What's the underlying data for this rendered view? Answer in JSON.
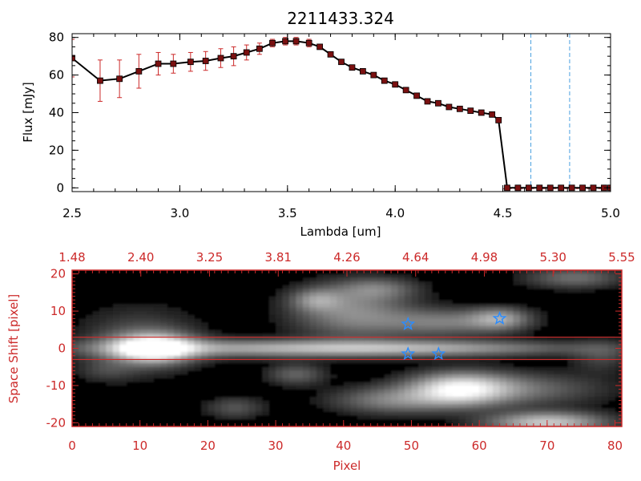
{
  "title": "2211433.324",
  "chart_data": [
    {
      "type": "line",
      "title": "2211433.324",
      "xlabel": "Lambda [um]",
      "ylabel": "Flux [mJy]",
      "xlim": [
        2.5,
        5.0
      ],
      "ylim": [
        -2,
        82
      ],
      "xticks": [
        "2.5",
        "3.0",
        "3.5",
        "4.0",
        "4.5",
        "5.0"
      ],
      "yticks": [
        "0",
        "20",
        "40",
        "60",
        "80"
      ],
      "reference_lines_x": [
        4.63,
        4.81
      ],
      "series": [
        {
          "x": [
            2.5,
            2.63,
            2.72,
            2.81,
            2.9,
            2.97,
            3.05,
            3.12,
            3.19,
            3.25,
            3.31,
            3.37,
            3.43,
            3.49,
            3.54,
            3.6,
            3.65,
            3.7,
            3.75,
            3.8,
            3.85,
            3.9,
            3.95,
            4.0,
            4.05,
            4.1,
            4.15,
            4.2,
            4.25,
            4.3,
            4.35,
            4.4,
            4.45,
            4.48,
            4.52,
            4.57,
            4.62,
            4.67,
            4.72,
            4.77,
            4.82,
            4.87,
            4.92,
            4.97,
            5.0
          ],
          "y": [
            69,
            57,
            58,
            62,
            66,
            66,
            67,
            67.5,
            69,
            70,
            72,
            74,
            77,
            78,
            78,
            77,
            75,
            71,
            67,
            64,
            62,
            60,
            57,
            55,
            52,
            49,
            46,
            45,
            43,
            42,
            41,
            40,
            39,
            36,
            0,
            0,
            0,
            0,
            0,
            0,
            0,
            0,
            0,
            0,
            0
          ],
          "yerr": [
            10,
            11,
            10,
            9,
            6,
            5,
            5,
            5,
            5,
            5,
            4,
            3,
            2,
            2,
            2,
            2,
            1,
            1,
            1,
            1,
            1,
            1,
            1,
            1,
            1,
            1,
            1,
            1,
            1,
            1,
            1,
            1,
            1,
            1,
            0,
            0,
            0,
            0,
            0,
            0,
            0,
            0,
            0,
            0,
            0
          ]
        }
      ]
    },
    {
      "type": "heatmap",
      "xlabel": "Pixel",
      "ylabel": "Space Shift [pixel]",
      "xlim": [
        0,
        81
      ],
      "ylim": [
        -21,
        21
      ],
      "xticks": [
        "0",
        "10",
        "20",
        "30",
        "40",
        "50",
        "60",
        "70",
        "80"
      ],
      "yticks": [
        "-20",
        "-10",
        "0",
        "10",
        "20"
      ],
      "top_ticks": [
        "1.48",
        "2.40",
        "3.25",
        "3.81",
        "4.26",
        "4.64",
        "4.98",
        "5.30",
        "5.55"
      ],
      "extraction_lines_y": [
        3,
        -3
      ],
      "stars": [
        {
          "x": 49.5,
          "y": 6.5
        },
        {
          "x": 49.5,
          "y": -1.5
        },
        {
          "x": 54,
          "y": -1.5
        },
        {
          "x": 63,
          "y": 8
        }
      ],
      "blobs": [
        {
          "x": 12,
          "y": 0,
          "sx": 4,
          "sy": 2.6,
          "a": 1.0
        },
        {
          "x": 30,
          "y": 0,
          "sx": 20,
          "sy": 1.6,
          "a": 0.55
        },
        {
          "x": 55,
          "y": 0,
          "sx": 15,
          "sy": 1.4,
          "a": 0.35
        },
        {
          "x": 10,
          "y": 2,
          "sx": 6,
          "sy": 6,
          "a": 0.25
        },
        {
          "x": 41,
          "y": 10,
          "sx": 6,
          "sy": 5,
          "a": 0.45
        },
        {
          "x": 36,
          "y": 13,
          "sx": 2.5,
          "sy": 2,
          "a": 0.35
        },
        {
          "x": 55,
          "y": 7,
          "sx": 7,
          "sy": 2.5,
          "a": 0.4
        },
        {
          "x": 63,
          "y": 8,
          "sx": 3,
          "sy": 2,
          "a": 0.45
        },
        {
          "x": 57,
          "y": -11,
          "sx": 5,
          "sy": 3,
          "a": 0.8
        },
        {
          "x": 65,
          "y": -11,
          "sx": 9,
          "sy": 3,
          "a": 0.35
        },
        {
          "x": 47,
          "y": -14,
          "sx": 6,
          "sy": 2.5,
          "a": 0.4
        },
        {
          "x": 70,
          "y": -20,
          "sx": 6,
          "sy": 2,
          "a": 0.75
        },
        {
          "x": 33,
          "y": -7,
          "sx": 3,
          "sy": 2,
          "a": 0.3
        },
        {
          "x": 24,
          "y": -16,
          "sx": 3,
          "sy": 2,
          "a": 0.25
        },
        {
          "x": 74,
          "y": 19,
          "sx": 5,
          "sy": 2,
          "a": 0.35
        },
        {
          "x": 45,
          "y": 16,
          "sx": 4,
          "sy": 2,
          "a": 0.3
        },
        {
          "x": 78,
          "y": -2,
          "sx": 3,
          "sy": 3,
          "a": 0.2
        },
        {
          "x": 5,
          "y": -6,
          "sx": 3,
          "sy": 2,
          "a": 0.15
        }
      ]
    }
  ],
  "colors": {
    "accent": "#cc2a2a",
    "line": "#000000",
    "marker": "#7a1010",
    "dash": "#4aa0e0",
    "star": "#2a8cff"
  }
}
